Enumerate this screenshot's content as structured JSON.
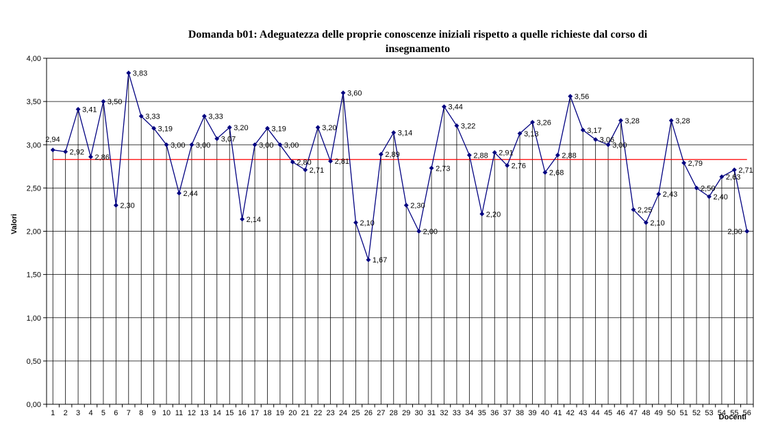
{
  "chart_data": {
    "type": "line",
    "title": "Domanda b01: Adeguatezza delle proprie conoscenze iniziali rispetto a quelle richieste dal corso di insegnamento",
    "title_lines": [
      "Domanda b01: Adeguatezza delle proprie conoscenze iniziali rispetto a quelle richieste dal corso di",
      "insegnamento"
    ],
    "xlabel": "Docenti",
    "ylabel": "Valori",
    "categories": [
      "1",
      "2",
      "3",
      "4",
      "5",
      "6",
      "7",
      "8",
      "9",
      "10",
      "11",
      "12",
      "13",
      "14",
      "15",
      "16",
      "17",
      "18",
      "19",
      "20",
      "21",
      "22",
      "23",
      "24",
      "25",
      "26",
      "27",
      "28",
      "29",
      "30",
      "31",
      "32",
      "33",
      "34",
      "35",
      "36",
      "37",
      "38",
      "39",
      "40",
      "41",
      "42",
      "43",
      "44",
      "45",
      "46",
      "47",
      "48",
      "49",
      "50",
      "51",
      "52",
      "53",
      "54",
      "55",
      "56"
    ],
    "values": [
      2.94,
      2.92,
      3.41,
      2.86,
      3.5,
      2.3,
      3.83,
      3.33,
      3.19,
      3.0,
      2.44,
      3.0,
      3.33,
      3.07,
      3.2,
      2.14,
      3.0,
      3.19,
      3.0,
      2.8,
      2.71,
      3.2,
      2.81,
      3.6,
      2.1,
      1.67,
      2.89,
      3.14,
      2.3,
      2.0,
      2.73,
      3.44,
      3.22,
      2.88,
      2.2,
      2.91,
      2.76,
      3.13,
      3.26,
      2.68,
      2.88,
      3.56,
      3.17,
      3.06,
      3.0,
      3.28,
      2.25,
      2.1,
      2.43,
      3.28,
      2.79,
      2.5,
      2.4,
      2.63,
      2.71,
      2.0
    ],
    "point_labels": [
      "2,94",
      "2,92",
      "3,41",
      "2,86",
      "3,50",
      "2,30",
      "3,83",
      "3,33",
      "3,19",
      "3,00",
      "2,44",
      "3,00",
      "3,33",
      "3,07",
      "3,20",
      "2,14",
      "3,00",
      "3,19",
      "3,00",
      "2,80",
      "2,71",
      "3,20",
      "2,81",
      "3,60",
      "2,10",
      "1,67",
      "2,89",
      "3,14",
      "2,30",
      "2,00",
      "2,73",
      "3,44",
      "3,22",
      "2,88",
      "2,20",
      "2,91",
      "2,76",
      "3,13",
      "3,26",
      "2,68",
      "2,88",
      "3,56",
      "3,17",
      "3,06",
      "3,00",
      "3,28",
      "2,25",
      "2,10",
      "2,43",
      "3,28",
      "2,79",
      "2,50",
      "2,40",
      "2,63",
      "2,71",
      "2,00"
    ],
    "ylim": [
      0,
      4
    ],
    "ytick_step": 0.5,
    "ytick_labels": [
      "0,00",
      "0,50",
      "1,00",
      "1,50",
      "2,00",
      "2,50",
      "3,00",
      "3,50",
      "4,00"
    ],
    "reference_line": {
      "value": 2.83,
      "color": "#ff0000"
    },
    "series_color": "#000080",
    "grid": true,
    "drop_lines": true,
    "legend_position": "none"
  }
}
